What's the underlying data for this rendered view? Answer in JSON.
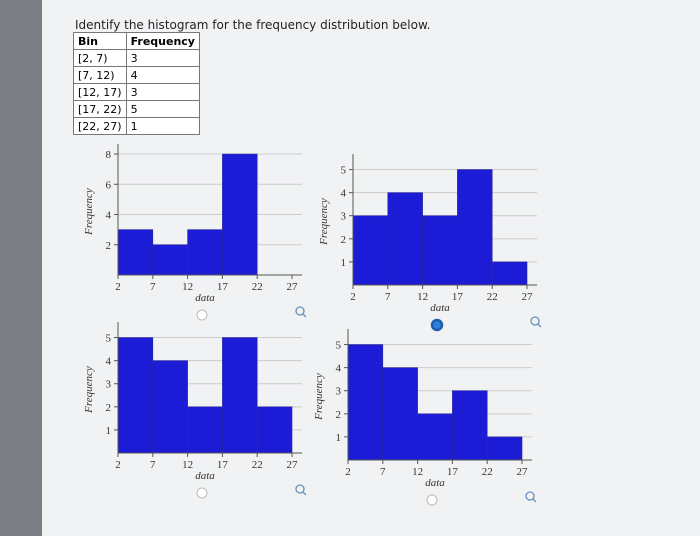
{
  "question": "Identify the histogram for the frequency distribution below.",
  "table": {
    "header": [
      "Bin",
      "Frequency"
    ],
    "rows": [
      [
        "[2, 7)",
        "3"
      ],
      [
        "[7, 12)",
        "4"
      ],
      [
        "[12, 17)",
        "3"
      ],
      [
        "[17, 22)",
        "5"
      ],
      [
        "[22, 27)",
        "1"
      ]
    ]
  },
  "options": [
    {
      "selected": false,
      "chart": {
        "type": "histogram",
        "bins": [
          2,
          7,
          12,
          17,
          22,
          27
        ],
        "values": [
          3,
          2,
          3,
          8,
          0
        ],
        "color": "#1c1cd6",
        "ylim": [
          0,
          8.4
        ],
        "yticks": [
          2,
          4,
          6,
          8
        ],
        "xlabel": "data",
        "ylabel": "Frequency",
        "grid": true
      }
    },
    {
      "selected": true,
      "chart": {
        "type": "histogram",
        "bins": [
          2,
          7,
          12,
          17,
          22,
          27
        ],
        "values": [
          3,
          4,
          3,
          5,
          1
        ],
        "color": "#1c1cd6",
        "ylim": [
          0,
          5.5
        ],
        "yticks": [
          1,
          2,
          3,
          4,
          5
        ],
        "xlabel": "data",
        "ylabel": "Frequency",
        "grid": true
      }
    },
    {
      "selected": false,
      "chart": {
        "type": "histogram",
        "bins": [
          2,
          7,
          12,
          17,
          22,
          27
        ],
        "values": [
          5,
          4,
          2,
          5,
          2
        ],
        "color": "#1c1cd6",
        "ylim": [
          0,
          5.5
        ],
        "yticks": [
          1,
          2,
          3,
          4,
          5
        ],
        "xlabel": "data",
        "ylabel": "Frequency",
        "grid": true
      }
    },
    {
      "selected": false,
      "chart": {
        "type": "histogram",
        "bins": [
          2,
          7,
          12,
          17,
          22,
          27
        ],
        "values": [
          5,
          4,
          2,
          3,
          1
        ],
        "color": "#1c1cd6",
        "ylim": [
          0,
          5.5
        ],
        "yticks": [
          1,
          2,
          3,
          4,
          5
        ],
        "xlabel": "data",
        "ylabel": "Frequency",
        "grid": true
      }
    }
  ]
}
